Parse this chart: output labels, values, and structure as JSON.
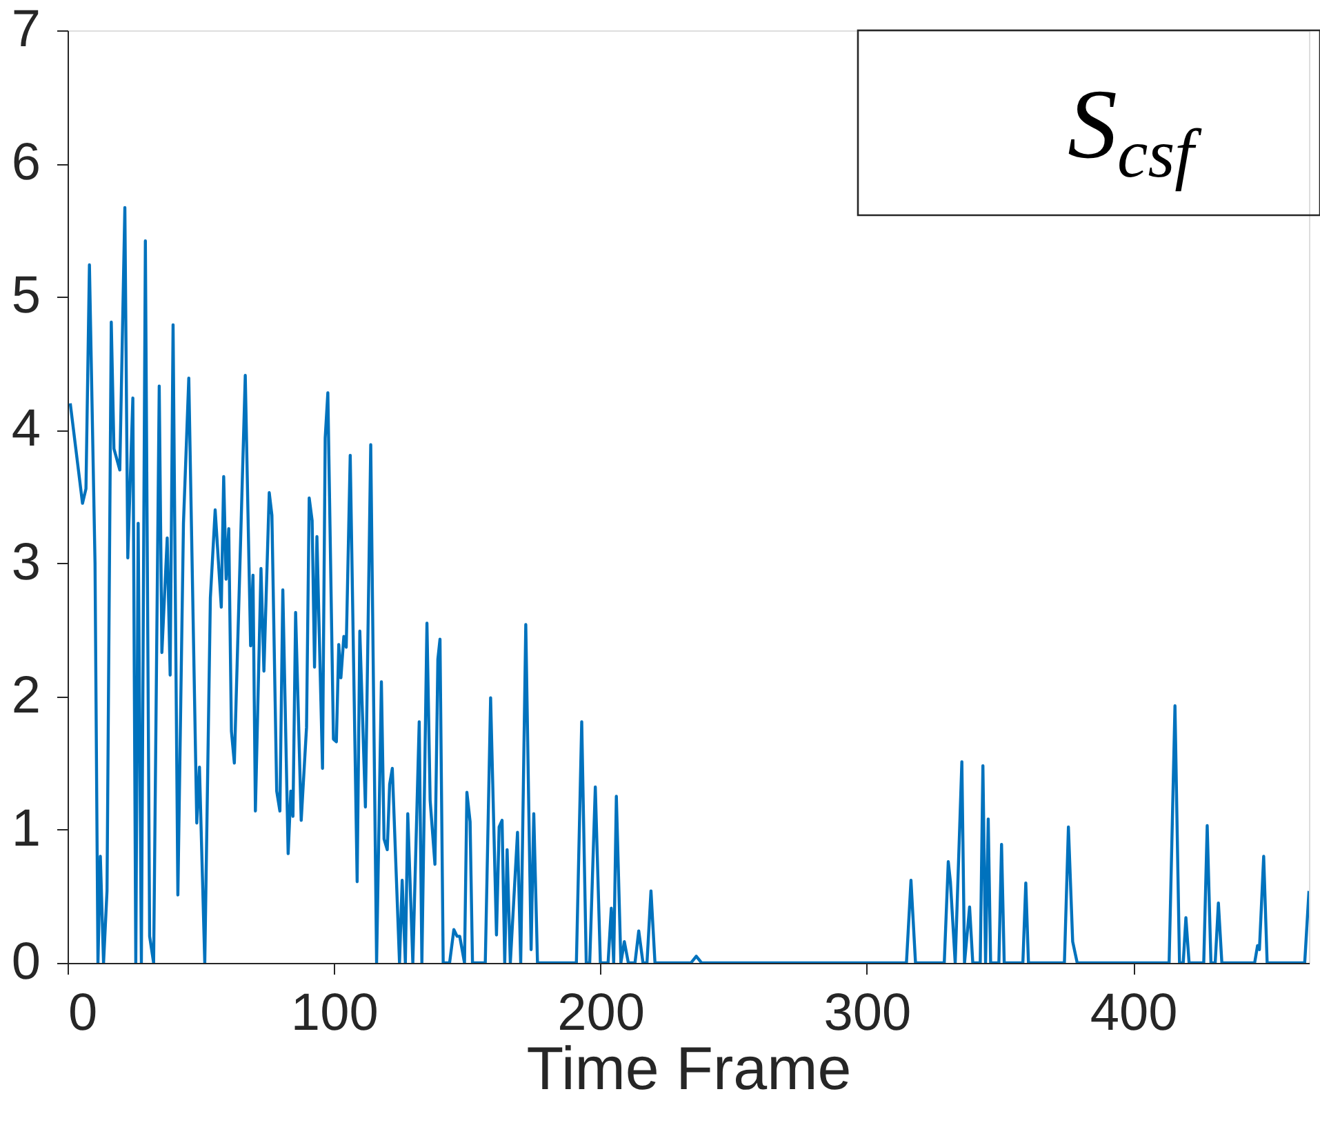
{
  "chart_data": {
    "type": "line",
    "xlabel": "Time Frame",
    "xlim": [
      0,
      466
    ],
    "ylim": [
      0,
      7
    ],
    "xticks": [
      0,
      100,
      200,
      300,
      400
    ],
    "yticks": [
      0,
      1,
      2,
      3,
      4,
      5,
      6,
      7
    ],
    "grid": false,
    "legend": "top right",
    "marker": "none",
    "line_style": "solid",
    "series": [
      {
        "name": "S$_{csf}$",
        "color": "#0072bd",
        "x": [
          1,
          5.6,
          6.9,
          8.2,
          10.3,
          11.4,
          12.3,
          13.5,
          14.8,
          16.4,
          17.4,
          19.6,
          21.5,
          22.6,
          24.5,
          25.6,
          26.5,
          27.7,
          29.2,
          30.8,
          32.3,
          34.4,
          35.4,
          37.4,
          38.5,
          39.6,
          41.4,
          43.5,
          45.5,
          48.5,
          49.5,
          51.5,
          53.6,
          55.4,
          57.7,
          58.6,
          59.5,
          60.5,
          61.5,
          62.6,
          66.7,
          68.7,
          69.6,
          70.5,
          72.6,
          73.7,
          75.7,
          76.7,
          78.5,
          79.7,
          80.8,
          82.8,
          83.8,
          84.6,
          85.6,
          87.7,
          89.7,
          90.7,
          91.8,
          92.7,
          93.6,
          95.7,
          96.7,
          97.7,
          99.8,
          100.9,
          101.8,
          102.6,
          103.7,
          104.6,
          106.1,
          108.7,
          109.7,
          111.8,
          113.8,
          116,
          117.8,
          118.8,
          120,
          120.9,
          121.9,
          124.6,
          125.6,
          126.8,
          127.7,
          129.6,
          132,
          133,
          134.9,
          136.1,
          137.9,
          139,
          139.8,
          141,
          143.4,
          145,
          146.2,
          147.2,
          149,
          149.9,
          151.1,
          152,
          156.8,
          158.8,
          161,
          162,
          163.1,
          164.1,
          165,
          166.2,
          168.9,
          170.1,
          172,
          174,
          175,
          176.4,
          191,
          193,
          194.7,
          196,
          198.1,
          200,
          202.9,
          204.1,
          205,
          206,
          207.7,
          209,
          210.5,
          213,
          214.4,
          216,
          217.5,
          219,
          220.5,
          234,
          236,
          238,
          314.9,
          316.6,
          318.3,
          329.1,
          330.6,
          331.4,
          333.2,
          335.7,
          336.7,
          338.6,
          339.8,
          342.6,
          343.6,
          344.6,
          345.6,
          346.5,
          349.6,
          350.6,
          351.6,
          358.6,
          359.7,
          360.7,
          374.2,
          375.7,
          377.3,
          379,
          413.5,
          415.7,
          417.4,
          418.8,
          419.8,
          421,
          426.5,
          427.8,
          429.2,
          430.8,
          432,
          433.3,
          445.6,
          446.7,
          447.4,
          449,
          450.3,
          464.4,
          466
        ],
        "values": [
          4.2,
          3.45,
          3.56,
          5.24,
          3.0,
          0,
          0.8,
          0,
          0.54,
          4.81,
          3.86,
          3.7,
          5.67,
          3.04,
          4.24,
          0,
          3.3,
          0,
          5.42,
          0.2,
          0,
          4.33,
          2.33,
          3.19,
          2.16,
          4.79,
          0.51,
          3.3,
          4.39,
          1.05,
          1.47,
          0,
          2.74,
          3.4,
          2.67,
          3.65,
          2.88,
          3.26,
          1.74,
          1.5,
          4.41,
          2.38,
          2.91,
          1.14,
          2.96,
          2.19,
          3.53,
          3.36,
          1.29,
          1.14,
          2.8,
          0.82,
          1.29,
          1.1,
          2.63,
          1.07,
          1.77,
          3.49,
          3.32,
          2.22,
          3.2,
          1.46,
          3.94,
          4.28,
          1.68,
          1.66,
          2.39,
          2.14,
          2.45,
          2.37,
          3.81,
          0.61,
          2.49,
          1.17,
          3.89,
          0,
          2.11,
          0.93,
          0.85,
          1.34,
          1.46,
          0,
          0.62,
          0,
          1.12,
          0,
          1.81,
          0,
          2.55,
          1.22,
          0.74,
          2.28,
          2.43,
          0,
          0,
          0.25,
          0.2,
          0.2,
          0,
          1.28,
          1.06,
          0,
          0,
          1.99,
          0.21,
          1.02,
          1.07,
          0,
          0.85,
          0,
          0.98,
          0,
          2.54,
          0.1,
          1.12,
          0,
          0,
          1.81,
          0,
          0,
          1.32,
          0,
          0,
          0.41,
          0,
          1.25,
          0,
          0.16,
          0,
          0,
          0.24,
          0,
          0,
          0.54,
          0,
          0,
          0.05,
          0,
          0,
          0.62,
          0,
          0,
          0.76,
          0.61,
          0,
          1.51,
          0,
          0.42,
          0,
          0,
          1.48,
          0,
          1.08,
          0,
          0,
          0.89,
          0,
          0,
          0.6,
          0,
          0,
          1.02,
          0.16,
          0,
          0,
          1.93,
          0,
          0,
          0.34,
          0,
          0,
          1.03,
          0,
          0,
          0.45,
          0,
          0,
          0.13,
          0.1,
          0.8,
          0,
          0,
          0.54
        ]
      }
    ]
  }
}
